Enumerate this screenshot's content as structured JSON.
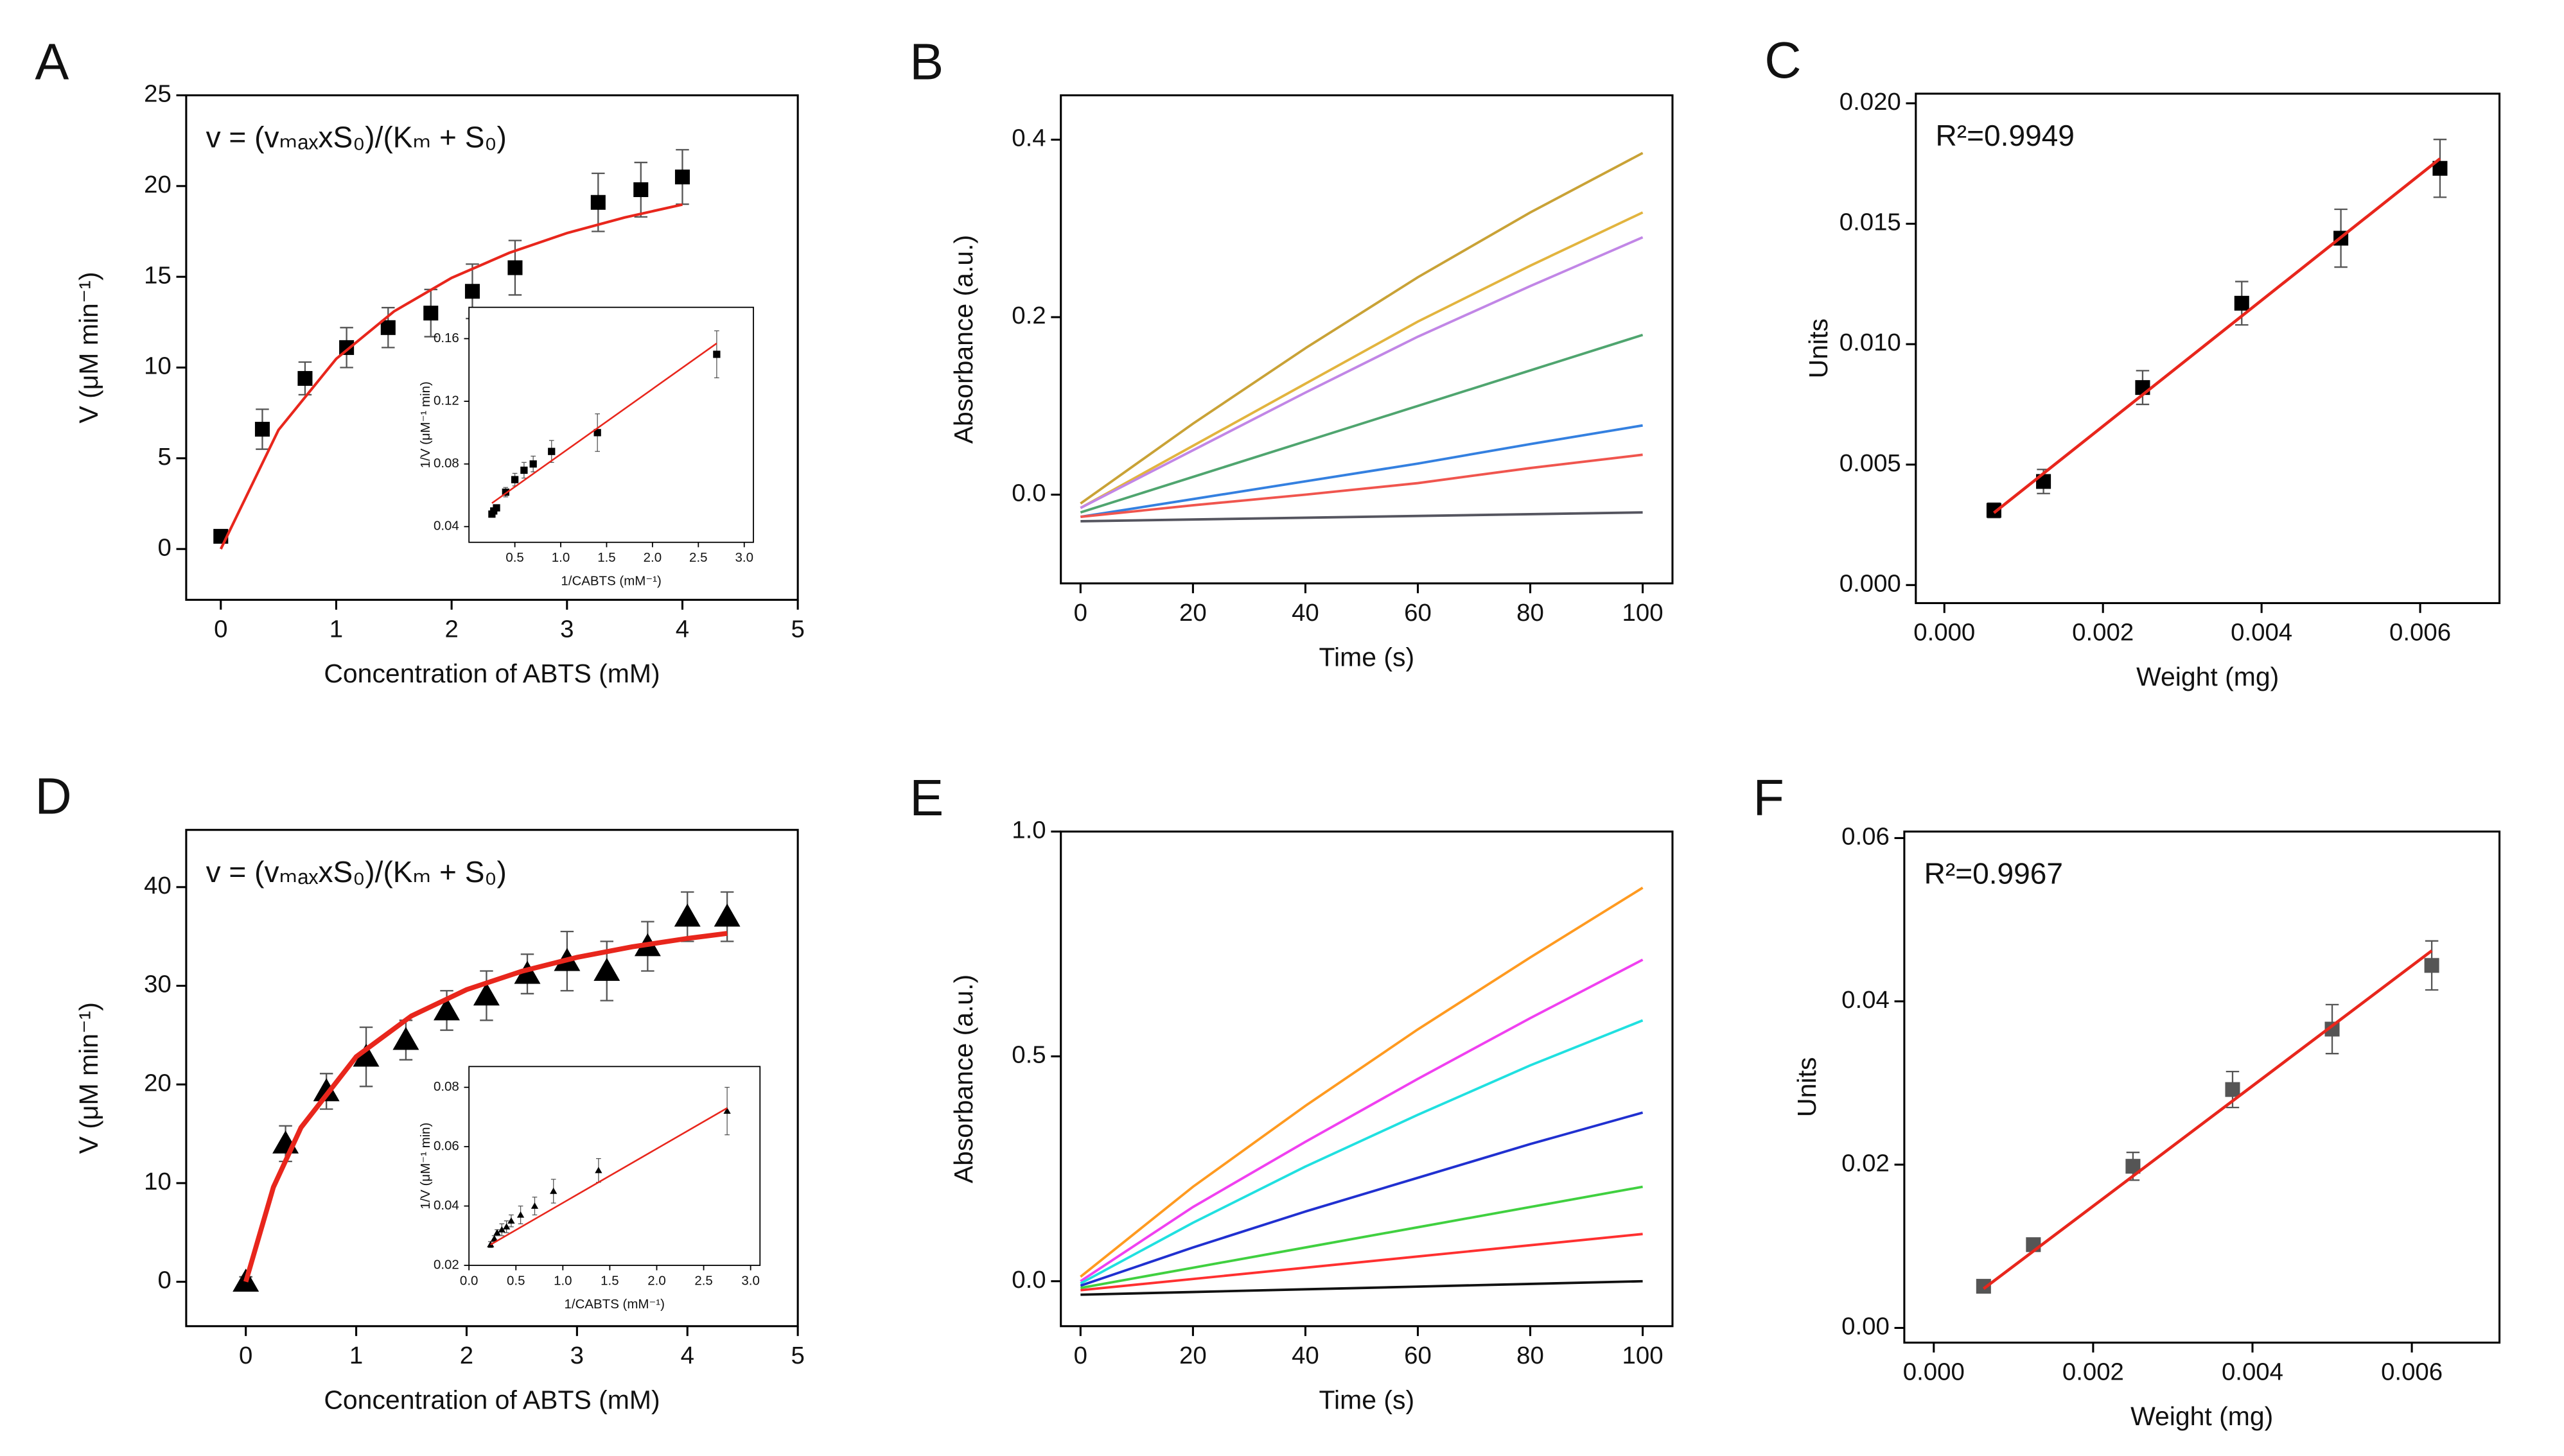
{
  "chart_data": [
    {
      "type": "scatter",
      "panel_label": "A",
      "annotation": "v = (vₘₐₓxS₀)/(Kₘ + S₀)",
      "xlabel": "Concentration of ABTS (mM)",
      "ylabel": "V (μM min⁻¹)",
      "xlim": [
        -0.3,
        5
      ],
      "ylim": [
        -2.8,
        25
      ],
      "xticks": [
        0,
        1,
        2,
        3,
        4,
        5
      ],
      "yticks": [
        0,
        5,
        10,
        15,
        20,
        25
      ],
      "series": [
        {
          "color": "#000000",
          "marker": "square",
          "x": [
            0,
            0.36,
            0.73,
            1.09,
            1.45,
            1.82,
            2.18,
            2.55,
            3.27,
            3.64,
            4.0
          ],
          "values": [
            0.7,
            6.6,
            9.4,
            11.1,
            12.2,
            13.0,
            14.2,
            15.5,
            19.1,
            19.8,
            20.5
          ],
          "errors": [
            0.3,
            1.1,
            0.9,
            1.1,
            1.1,
            1.3,
            1.5,
            1.5,
            1.6,
            1.5,
            1.5
          ]
        },
        {
          "color": "#e8261c",
          "mode": "line",
          "line_width": 1.6,
          "x": [
            0,
            0.5,
            1,
            1.5,
            2,
            2.5,
            3,
            3.5,
            4
          ],
          "values": [
            0,
            6.56,
            10.48,
            13.09,
            14.94,
            16.32,
            17.41,
            18.27,
            18.98
          ]
        }
      ],
      "inset": {
        "type": "scatter",
        "xlabel": "1/CABTS (mM⁻¹)",
        "ylabel": "1/V (μM⁻¹ min)",
        "xlim": [
          0,
          3.1
        ],
        "ylim": [
          0.03,
          0.18
        ],
        "xticks": [
          {
            "value": 0.5,
            "label": "0.5"
          },
          {
            "value": 1,
            "label": "1.0"
          },
          {
            "value": 1.5,
            "label": "1.5"
          },
          {
            "value": 2,
            "label": "2.0"
          },
          {
            "value": 2.5,
            "label": "2.5"
          },
          {
            "value": 3,
            "label": "3.0"
          }
        ],
        "yticks": [
          0.04,
          0.08,
          0.12,
          0.16
        ],
        "series": [
          {
            "color": "#000000",
            "marker": "square",
            "x": [
              0.25,
              0.27,
              0.3,
              0.4,
              0.5,
              0.6,
              0.7,
              0.9,
              1.4,
              2.7
            ],
            "values": [
              0.048,
              0.05,
              0.052,
              0.062,
              0.07,
              0.076,
              0.08,
              0.088,
              0.1,
              0.15
            ],
            "errors": [
              0.002,
              0.002,
              0.002,
              0.003,
              0.004,
              0.005,
              0.005,
              0.007,
              0.012,
              0.015
            ]
          },
          {
            "color": "#e8261c",
            "mode": "line",
            "line_width": 1,
            "x": [
              0.25,
              2.7
            ],
            "values": [
              0.055,
              0.157
            ]
          }
        ]
      }
    },
    {
      "type": "line",
      "panel_label": "B",
      "xlabel": "Time (s)",
      "ylabel": "Absorbance (a.u.)",
      "xlim": [
        -3.5,
        105.3
      ],
      "ylim": [
        -0.1,
        0.45
      ],
      "xticks": [
        0,
        20,
        40,
        60,
        80,
        100
      ],
      "yticks": [
        {
          "value": 0,
          "label": "0.0"
        },
        0.2,
        0.4
      ],
      "x": [
        0,
        20,
        40,
        60,
        80,
        100
      ],
      "series": [
        {
          "color": "#c9a236",
          "values": [
            -0.01,
            0.08,
            0.165,
            0.245,
            0.318,
            0.385
          ]
        },
        {
          "color": "#e2b43e",
          "values": [
            -0.015,
            0.055,
            0.125,
            0.195,
            0.258,
            0.318
          ]
        },
        {
          "color": "#c186e6",
          "values": [
            -0.015,
            0.05,
            0.115,
            0.178,
            0.235,
            0.29
          ]
        },
        {
          "color": "#4fa56f",
          "values": [
            -0.02,
            0.02,
            0.06,
            0.1,
            0.14,
            0.18
          ]
        },
        {
          "color": "#3480e0",
          "values": [
            -0.025,
            -0.005,
            0.015,
            0.035,
            0.057,
            0.078
          ]
        },
        {
          "color": "#f0554e",
          "values": [
            -0.025,
            -0.012,
            0.0,
            0.013,
            0.03,
            0.045
          ]
        },
        {
          "color": "#55555f",
          "values": [
            -0.03,
            -0.028,
            -0.026,
            -0.024,
            -0.022,
            -0.02
          ]
        }
      ]
    },
    {
      "type": "scatter",
      "panel_label": "C",
      "annotation": "R²=0.9949",
      "xlabel": "Weight (mg)",
      "ylabel": "Units",
      "xlim": [
        -0.00036,
        0.007
      ],
      "ylim": [
        -0.00075,
        0.0204
      ],
      "xticks": [
        {
          "value": 0,
          "label": "0.000"
        },
        0.002,
        0.004,
        0.006
      ],
      "yticks": [
        {
          "value": 0,
          "label": "0.000"
        },
        0.005,
        {
          "value": 0.01,
          "label": "0.010"
        },
        0.015,
        {
          "value": 0.02,
          "label": "0.020"
        }
      ],
      "series": [
        {
          "color": "#000000",
          "marker": "square",
          "x": [
            0.000625,
            0.00125,
            0.0025,
            0.00375,
            0.005,
            0.00625
          ],
          "values": [
            0.0031,
            0.0043,
            0.0082,
            0.0117,
            0.0144,
            0.0173
          ],
          "errors": [
            0.0003,
            0.0005,
            0.0007,
            0.0009,
            0.0012,
            0.0012
          ]
        },
        {
          "color": "#e8261c",
          "mode": "line",
          "line_width": 1.8,
          "x": [
            0.000625,
            0.00625
          ],
          "values": [
            0.003,
            0.0177
          ]
        }
      ]
    },
    {
      "type": "scatter",
      "panel_label": "D",
      "annotation": "v = (vₘₐₓxS₀)/(Kₘ + S₀)",
      "xlabel": "Concentration of ABTS (mM)",
      "ylabel": "V (μM min⁻¹)",
      "xlim": [
        -0.54,
        5
      ],
      "ylim": [
        -4.5,
        45.8
      ],
      "xticks": [
        0,
        1,
        2,
        3,
        4,
        5
      ],
      "yticks": [
        0,
        10,
        20,
        30,
        40
      ],
      "series": [
        {
          "color": "#000000",
          "marker": "triangle",
          "x": [
            0,
            0.36,
            0.73,
            1.09,
            1.45,
            1.82,
            2.18,
            2.55,
            2.91,
            3.27,
            3.64,
            4.0,
            4.36
          ],
          "values": [
            0,
            14,
            19.3,
            22.8,
            24.5,
            27.5,
            29,
            31.2,
            32.5,
            31.5,
            34,
            37,
            37
          ],
          "errors": [
            0.5,
            1.8,
            1.8,
            3,
            2,
            2,
            2.5,
            2,
            3,
            3,
            2.5,
            2.5,
            2.5
          ]
        },
        {
          "color": "#e8261c",
          "mode": "line",
          "line_width": 3,
          "x": [
            0,
            0.25,
            0.5,
            1,
            1.5,
            2,
            2.5,
            3,
            3.5,
            4,
            4.36
          ],
          "values": [
            0,
            9.59,
            15.63,
            22.81,
            26.94,
            29.61,
            31.47,
            32.88,
            33.95,
            34.8,
            35.31
          ]
        }
      ],
      "inset": {
        "type": "scatter",
        "xlabel": "1/CABTS (mM⁻¹)",
        "ylabel": "1/V (μM⁻¹ min)",
        "xlim": [
          0,
          3.1
        ],
        "ylim": [
          0.02,
          0.087
        ],
        "xticks": [
          {
            "value": 0,
            "label": "0.0"
          },
          0.5,
          {
            "value": 1,
            "label": "1.0"
          },
          1.5,
          {
            "value": 2,
            "label": "2.0"
          },
          2.5,
          {
            "value": 3,
            "label": "3.0"
          }
        ],
        "yticks": [
          0.02,
          0.04,
          0.06,
          0.08
        ],
        "series": [
          {
            "color": "#000000",
            "marker": "triangle",
            "x": [
              0.23,
              0.27,
              0.3,
              0.35,
              0.4,
              0.45,
              0.55,
              0.7,
              0.9,
              1.38,
              2.75
            ],
            "values": [
              0.027,
              0.029,
              0.031,
              0.032,
              0.033,
              0.035,
              0.037,
              0.04,
              0.045,
              0.052,
              0.072
            ],
            "errors": [
              0.001,
              0.001,
              0.001,
              0.002,
              0.002,
              0.002,
              0.003,
              0.003,
              0.004,
              0.004,
              0.008
            ]
          },
          {
            "color": "#e8261c",
            "mode": "line",
            "line_width": 1,
            "x": [
              0.23,
              2.75
            ],
            "values": [
              0.027,
              0.073
            ]
          }
        ]
      }
    },
    {
      "type": "line",
      "panel_label": "E",
      "xlabel": "Time (s)",
      "ylabel": "Absorbance (a.u.)",
      "xlim": [
        -3.5,
        105.3
      ],
      "ylim": [
        -0.1,
        1.0
      ],
      "xticks": [
        0,
        20,
        40,
        60,
        80,
        100
      ],
      "yticks": [
        {
          "value": 0,
          "label": "0.0"
        },
        0.5,
        {
          "value": 1,
          "label": "1.0"
        }
      ],
      "x": [
        0,
        20,
        40,
        60,
        80,
        100
      ],
      "series": [
        {
          "color": "#ff9a20",
          "values": [
            0.01,
            0.21,
            0.39,
            0.56,
            0.72,
            0.875
          ]
        },
        {
          "color": "#f040f0",
          "values": [
            0.0,
            0.165,
            0.31,
            0.45,
            0.585,
            0.715
          ]
        },
        {
          "color": "#20e0e0",
          "values": [
            -0.005,
            0.13,
            0.255,
            0.37,
            0.48,
            0.58
          ]
        },
        {
          "color": "#2030d0",
          "values": [
            -0.01,
            0.075,
            0.155,
            0.23,
            0.305,
            0.375
          ]
        },
        {
          "color": "#40d040",
          "values": [
            -0.015,
            0.03,
            0.075,
            0.12,
            0.165,
            0.21
          ]
        },
        {
          "color": "#ff3030",
          "values": [
            -0.02,
            0.005,
            0.03,
            0.055,
            0.08,
            0.105
          ]
        },
        {
          "color": "#111111",
          "values": [
            -0.03,
            -0.024,
            -0.018,
            -0.012,
            -0.006,
            0.0
          ]
        }
      ]
    },
    {
      "type": "scatter",
      "panel_label": "F",
      "annotation": "R²=0.9967",
      "xlabel": "Weight (mg)",
      "ylabel": "Units",
      "xlim": [
        -0.00037,
        0.0071
      ],
      "ylim": [
        -0.0018,
        0.0608
      ],
      "xticks": [
        {
          "value": 0,
          "label": "0.000"
        },
        0.002,
        0.004,
        0.006
      ],
      "yticks": [
        {
          "value": 0,
          "label": "0.00"
        },
        0.02,
        0.04,
        0.06
      ],
      "series": [
        {
          "color": "#555555",
          "marker": "square",
          "x": [
            0.000625,
            0.00125,
            0.0025,
            0.00375,
            0.005,
            0.00625
          ],
          "values": [
            0.0051,
            0.0102,
            0.0198,
            0.0292,
            0.0366,
            0.0444
          ],
          "errors": [
            0.0003,
            0.0008,
            0.0017,
            0.0022,
            0.003,
            0.003
          ]
        },
        {
          "color": "#e8261c",
          "mode": "line",
          "line_width": 1.8,
          "x": [
            0.000625,
            0.00625
          ],
          "values": [
            0.0048,
            0.0462
          ]
        }
      ]
    }
  ]
}
